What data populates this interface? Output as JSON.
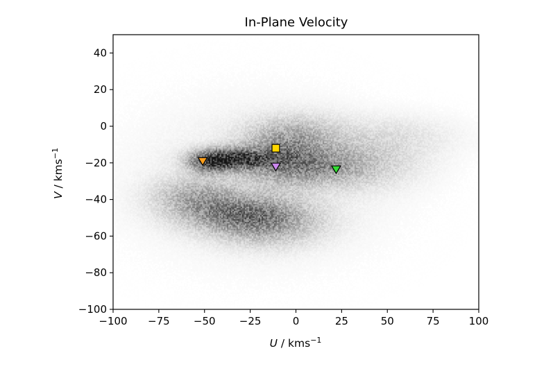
{
  "chart_data": {
    "type": "heatmap",
    "title": "In-Plane Velocity",
    "xlabel": {
      "symbol": "U",
      "unit_base": " / kms",
      "unit_sup": "−1"
    },
    "ylabel": {
      "symbol": "V",
      "unit_base": " / kms",
      "unit_sup": "−1"
    },
    "xlim": [
      -100,
      100
    ],
    "ylim": [
      -100,
      50
    ],
    "xticks": [
      -100,
      -75,
      -50,
      -25,
      0,
      25,
      50,
      75,
      100
    ],
    "xtick_labels": [
      "−100",
      "−75",
      "−50",
      "−25",
      "0",
      "25",
      "50",
      "75",
      "100"
    ],
    "yticks": [
      -100,
      -80,
      -60,
      -40,
      -20,
      0,
      20,
      40
    ],
    "ytick_labels": [
      "−100",
      "−80",
      "−60",
      "−40",
      "−20",
      "0",
      "20",
      "40"
    ],
    "colormap": "Greys",
    "density_components": [
      {
        "u": -35,
        "v": -18,
        "su": 13,
        "sv": 4,
        "w": 1.0
      },
      {
        "u": -48,
        "v": -20,
        "su": 7,
        "sv": 4,
        "w": 0.55
      },
      {
        "u": -30,
        "v": -48,
        "su": 22,
        "sv": 7,
        "w": 0.55
      },
      {
        "u": -55,
        "v": -38,
        "su": 16,
        "sv": 7,
        "w": 0.35
      },
      {
        "u": -15,
        "v": -55,
        "su": 20,
        "sv": 8,
        "w": 0.3
      },
      {
        "u": -8,
        "v": -18,
        "su": 14,
        "sv": 9,
        "w": 0.45
      },
      {
        "u": 15,
        "v": -22,
        "su": 18,
        "sv": 7,
        "w": 0.35
      },
      {
        "u": 0,
        "v": -5,
        "su": 18,
        "sv": 8,
        "w": 0.3
      },
      {
        "u": 40,
        "v": -20,
        "su": 22,
        "sv": 10,
        "w": 0.18
      },
      {
        "u": 55,
        "v": -5,
        "su": 25,
        "sv": 8,
        "w": 0.12
      },
      {
        "u": -20,
        "v": -30,
        "su": 45,
        "sv": 28,
        "w": 0.12
      }
    ],
    "markers": [
      {
        "name": "yellow-square",
        "shape": "square",
        "u": -11,
        "v": -12,
        "color": "#ffd700"
      },
      {
        "name": "orange-triangle",
        "shape": "triangle-down",
        "u": -51,
        "v": -19,
        "color": "#ff9f1c"
      },
      {
        "name": "violet-triangle",
        "shape": "triangle-down",
        "u": -11,
        "v": -22,
        "color": "#cc88ee"
      },
      {
        "name": "green-triangle",
        "shape": "triangle-down",
        "u": 22,
        "v": -23.5,
        "color": "#33dd33"
      }
    ]
  }
}
